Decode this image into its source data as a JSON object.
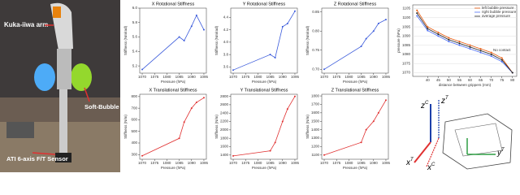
{
  "photo": {
    "labels": [
      "Kuka-iiwa arm",
      "Soft-Bubble Hand",
      "ATI 6-axis F/T Sensor"
    ]
  },
  "chart_data": [
    {
      "type": "line",
      "title": "X Rotational Stiffness",
      "xlabel": "Pressure (hPa)",
      "ylabel": "Stiffness (Nm/rad)",
      "x": [
        1070,
        1085,
        1087,
        1090,
        1092,
        1095
      ],
      "series": [
        {
          "color": "#3b5bdb",
          "values": [
            5.15,
            5.6,
            5.55,
            5.75,
            5.9,
            5.7
          ]
        }
      ],
      "xlim": [
        1069,
        1096
      ],
      "xticks": [
        1070,
        1075,
        1080,
        1085,
        1090,
        1095
      ],
      "ylim": [
        5.1,
        6.0
      ],
      "yticks": [
        {
          "value": 5.2,
          "label": "5.2"
        },
        5.4,
        5.6,
        5.8,
        {
          "value": 6.0,
          "label": "6.0"
        }
      ]
    },
    {
      "type": "line",
      "title": "Y Rotational Stiffness",
      "xlabel": "Pressure (hPa)",
      "ylabel": "Stiffness (Nm/rad)",
      "x": [
        1070,
        1085,
        1087,
        1090,
        1092,
        1095
      ],
      "series": [
        {
          "color": "#3b5bdb",
          "values": [
            3.55,
            3.8,
            3.75,
            4.25,
            4.3,
            4.5
          ]
        }
      ],
      "xlim": [
        1069,
        1096
      ],
      "xticks": [
        1070,
        1075,
        1080,
        1085,
        1090,
        1095
      ],
      "ylim": [
        3.5,
        4.55
      ],
      "yticks": [
        3.6,
        3.8,
        {
          "value": 4.0,
          "label": "4.0"
        },
        4.2,
        4.4
      ]
    },
    {
      "type": "line",
      "title": "Z Rotational Stiffness",
      "xlabel": "Pressure (hPa)",
      "ylabel": "Stiffness (Nm/rad)",
      "x": [
        1070,
        1085,
        1087,
        1090,
        1092,
        1095
      ],
      "series": [
        {
          "color": "#3b5bdb",
          "values": [
            0.7,
            0.76,
            0.78,
            0.8,
            0.82,
            0.83
          ]
        }
      ],
      "xlim": [
        1069,
        1096
      ],
      "xticks": [
        1070,
        1075,
        1080,
        1085,
        1090,
        1095
      ],
      "ylim": [
        0.69,
        0.86
      ],
      "yticks": [
        {
          "value": 0.7,
          "label": "0.70"
        },
        0.75,
        {
          "value": 0.8,
          "label": "0.80"
        },
        0.85
      ]
    },
    {
      "type": "line",
      "title": "X Translational Stiffness",
      "xlabel": "Pressure (hPa)",
      "ylabel": "Stiffness (N/m)",
      "x": [
        1070,
        1085,
        1087,
        1090,
        1092,
        1095
      ],
      "series": [
        {
          "color": "#e03131",
          "values": [
            290,
            440,
            580,
            700,
            750,
            790
          ]
        }
      ],
      "xlim": [
        1069,
        1096
      ],
      "xticks": [
        1070,
        1075,
        1080,
        1085,
        1090,
        1095
      ],
      "ylim": [
        260,
        820
      ],
      "yticks": [
        300,
        400,
        500,
        600,
        700,
        800
      ]
    },
    {
      "type": "line",
      "title": "Y Translational Stiffness",
      "xlabel": "Pressure (hPa)",
      "ylabel": "Stiffness (N/m)",
      "x": [
        1070,
        1085,
        1087,
        1090,
        1092,
        1095
      ],
      "series": [
        {
          "color": "#e03131",
          "values": [
            1380,
            1500,
            1700,
            2200,
            2500,
            2800
          ]
        }
      ],
      "xlim": [
        1069,
        1096
      ],
      "xticks": [
        1070,
        1075,
        1080,
        1085,
        1090,
        1095
      ],
      "ylim": [
        1300,
        2850
      ],
      "yticks": [
        1400,
        1600,
        1800,
        2000,
        2200,
        2400,
        2600,
        2800
      ]
    },
    {
      "type": "line",
      "title": "Z Translational Stiffness",
      "xlabel": "Pressure (hPa)",
      "ylabel": "Stiffness (N/m)",
      "x": [
        1070,
        1085,
        1087,
        1090,
        1092,
        1095
      ],
      "series": [
        {
          "color": "#e03131",
          "values": [
            1100,
            1250,
            1400,
            1500,
            1600,
            1750
          ]
        }
      ],
      "xlim": [
        1069,
        1096
      ],
      "xticks": [
        1070,
        1075,
        1080,
        1085,
        1090,
        1095
      ],
      "ylim": [
        1050,
        1820
      ],
      "yticks": [
        1100,
        1200,
        1300,
        1400,
        1500,
        1600,
        1700,
        1800
      ]
    },
    {
      "type": "line",
      "xlabel": "distance between grippers (mm)",
      "ylabel": "pressure (hPa)",
      "x": [
        35,
        40,
        45,
        50,
        55,
        60,
        65,
        70,
        75,
        80
      ],
      "series": [
        {
          "name": "left bubble pressure",
          "color": "#e8590c",
          "values": [
            1104,
            1095,
            1092,
            1089,
            1087,
            1085,
            1083,
            1081,
            1078,
            1070
          ]
        },
        {
          "name": "right bubble pressure",
          "color": "#4c6ef5",
          "values": [
            1101,
            1093,
            1090,
            1087,
            1085,
            1083,
            1081,
            1079,
            1076,
            1070
          ]
        },
        {
          "name": "average pressure",
          "color": "#222222",
          "values": [
            1102.5,
            1094,
            1091,
            1088,
            1086,
            1084,
            1082,
            1080,
            1077,
            1070
          ]
        }
      ],
      "annotation": "No contact",
      "legend": "upper right",
      "grid": true,
      "xlim": [
        33,
        82
      ],
      "xticks": [
        40,
        45,
        50,
        55,
        60,
        65,
        70,
        75,
        80
      ],
      "ylim": [
        1068,
        1107
      ],
      "yticks": [
        1070,
        1075,
        1080,
        1085,
        1090,
        1095,
        1100,
        1105
      ]
    }
  ],
  "diagram": {
    "axes": [
      {
        "name": "z",
        "frame": "C"
      },
      {
        "name": "z",
        "frame": "T"
      },
      {
        "name": "x",
        "frame": "T"
      },
      {
        "name": "y",
        "frame": "T"
      },
      {
        "name": "x",
        "frame": "C"
      }
    ]
  }
}
